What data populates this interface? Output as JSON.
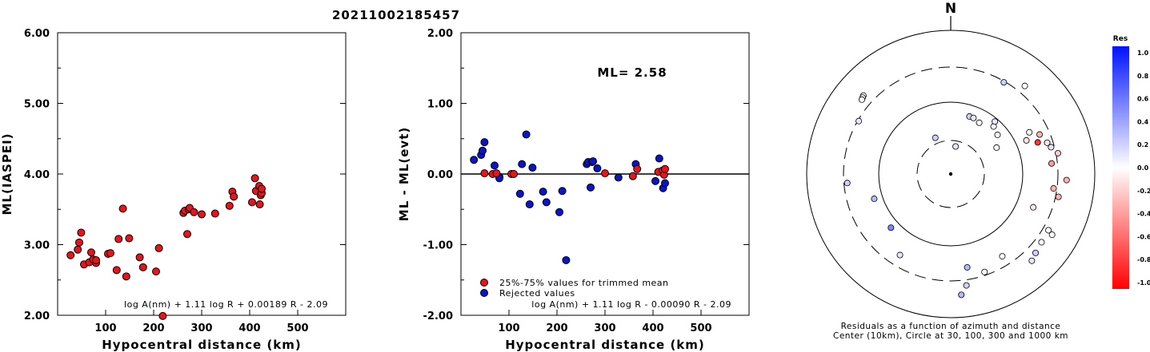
{
  "title": "20211002185457",
  "panel1": {
    "ylabel": "ML(IASPEI)",
    "xlabel": "Hypocentral distance (km)",
    "formula": "log A(nm) + 1.11 log R + 0.00189 R - 2.09",
    "yticks": [
      "2.00",
      "3.00",
      "4.00",
      "5.00",
      "6.00"
    ],
    "xticks": [
      "100",
      "200",
      "300",
      "400",
      "500"
    ]
  },
  "panel2": {
    "ylabel": "ML - ML(evt)",
    "xlabel": "Hypocentral distance (km)",
    "ml_text": "ML= 2.58",
    "legend_used": "25%-75% values for trimmed mean",
    "legend_rejected": "Rejected values",
    "formula": "log A(nm) + 1.11 log R - 0.00090 R - 2.09",
    "yticks": [
      "-2.00",
      "-1.00",
      "0.00",
      "1.00",
      "2.00"
    ],
    "xticks": [
      "100",
      "200",
      "300",
      "400",
      "500"
    ]
  },
  "panel3": {
    "north": "N",
    "caption1": "Residuals as a function of azimuth and distance",
    "caption2": "Center (10km), Circle at 30, 100, 300 and 1000 km",
    "colorbar_title": "Res",
    "colorbar_ticks": [
      "1.0",
      "0.8",
      "0.6",
      "0.4",
      "0.2",
      "0.0",
      "-0.2",
      "-0.4",
      "-0.6",
      "-0.8",
      "-1.0"
    ]
  },
  "colors": {
    "used": "#e8141b",
    "rejected": "#0a14c8"
  },
  "chart_data": [
    {
      "type": "scatter",
      "title": "20211002185457",
      "xlabel": "Hypocentral distance (km)",
      "ylabel": "ML(IASPEI)",
      "xlim": [
        0,
        600
      ],
      "ylim": [
        2.0,
        6.0
      ],
      "points": [
        [
          27,
          2.85
        ],
        [
          42,
          2.93
        ],
        [
          45,
          3.03
        ],
        [
          49,
          3.17
        ],
        [
          55,
          2.72
        ],
        [
          66,
          2.75
        ],
        [
          70,
          2.89
        ],
        [
          74,
          2.79
        ],
        [
          80,
          2.74
        ],
        [
          80,
          2.78
        ],
        [
          105,
          2.87
        ],
        [
          110,
          2.88
        ],
        [
          123,
          2.64
        ],
        [
          127,
          3.08
        ],
        [
          136,
          3.51
        ],
        [
          143,
          2.55
        ],
        [
          149,
          3.09
        ],
        [
          171,
          2.82
        ],
        [
          178,
          2.68
        ],
        [
          205,
          2.62
        ],
        [
          211,
          2.95
        ],
        [
          219,
          1.99
        ],
        [
          262,
          3.45
        ],
        [
          265,
          3.48
        ],
        [
          270,
          3.15
        ],
        [
          273,
          3.5
        ],
        [
          275,
          3.52
        ],
        [
          284,
          3.46
        ],
        [
          300,
          3.43
        ],
        [
          328,
          3.44
        ],
        [
          358,
          3.55
        ],
        [
          364,
          3.75
        ],
        [
          367,
          3.68
        ],
        [
          405,
          3.6
        ],
        [
          411,
          3.94
        ],
        [
          413,
          3.76
        ],
        [
          420,
          3.83
        ],
        [
          421,
          3.57
        ],
        [
          423,
          3.7
        ],
        [
          425,
          3.73
        ],
        [
          425,
          3.79
        ]
      ]
    },
    {
      "type": "scatter",
      "xlabel": "Hypocentral distance (km)",
      "ylabel": "ML - ML(evt)",
      "xlim": [
        0,
        600
      ],
      "ylim": [
        -2.0,
        2.0
      ],
      "reference_line": 0.0,
      "series": [
        {
          "name": "25%-75% values for trimmed mean",
          "points": [
            [
              49,
              0.01
            ],
            [
              66,
              0.0
            ],
            [
              74,
              0.01
            ],
            [
              105,
              0.0
            ],
            [
              110,
              0.0
            ],
            [
              300,
              0.01
            ],
            [
              358,
              -0.03
            ],
            [
              367,
              0.07
            ],
            [
              411,
              0.03
            ],
            [
              420,
              0.05
            ],
            [
              423,
              -0.01
            ],
            [
              425,
              0.07
            ]
          ]
        },
        {
          "name": "Rejected values",
          "points": [
            [
              27,
              0.2
            ],
            [
              42,
              0.27
            ],
            [
              45,
              0.33
            ],
            [
              49,
              0.45
            ],
            [
              70,
              0.12
            ],
            [
              80,
              -0.04
            ],
            [
              80,
              -0.06
            ],
            [
              123,
              -0.28
            ],
            [
              127,
              0.14
            ],
            [
              136,
              0.56
            ],
            [
              143,
              -0.43
            ],
            [
              149,
              0.09
            ],
            [
              171,
              -0.25
            ],
            [
              178,
              -0.4
            ],
            [
              205,
              -0.54
            ],
            [
              211,
              -0.24
            ],
            [
              219,
              -1.22
            ],
            [
              262,
              0.14
            ],
            [
              265,
              0.17
            ],
            [
              270,
              -0.19
            ],
            [
              273,
              0.17
            ],
            [
              275,
              0.18
            ],
            [
              284,
              0.08
            ],
            [
              328,
              -0.05
            ],
            [
              364,
              0.14
            ],
            [
              405,
              -0.1
            ],
            [
              413,
              0.22
            ],
            [
              421,
              -0.2
            ],
            [
              425,
              -0.13
            ]
          ]
        }
      ],
      "annotation": "ML= 2.58"
    },
    {
      "type": "scatter",
      "title": "Residuals as a function of azimuth and distance",
      "subtitle": "Center (10km), Circle at 30, 100, 300 and 1000 km",
      "coordinate_system": "polar (azimuth deg, log distance km)",
      "rings_km": [
        30,
        100,
        300,
        1000
      ],
      "colorbar": {
        "label": "Res",
        "range": [
          -1.0,
          1.0
        ]
      },
      "stations": [
        {
          "az": 312,
          "dist": 420,
          "res": 0.0
        },
        {
          "az": 311,
          "dist": 410,
          "res": 0.0
        },
        {
          "az": 310,
          "dist": 400,
          "res": 0.0
        },
        {
          "az": 300,
          "dist": 290,
          "res": 0.1
        },
        {
          "az": 265,
          "dist": 270,
          "res": 0.2
        },
        {
          "az": 252,
          "dist": 130,
          "res": 0.3
        },
        {
          "az": 228,
          "dist": 130,
          "res": 0.5
        },
        {
          "az": 337,
          "dist": 36,
          "res": 0.2
        },
        {
          "az": 212,
          "dist": 210,
          "res": 0.1
        },
        {
          "az": 30,
          "dist": 290,
          "res": 0.2
        },
        {
          "az": 40,
          "dist": 390,
          "res": 0.0
        },
        {
          "az": 18,
          "dist": 70,
          "res": 0.2
        },
        {
          "az": 22,
          "dist": 70,
          "res": 0.1
        },
        {
          "az": 29,
          "dist": 66,
          "res": 0.0
        },
        {
          "az": 42,
          "dist": 78,
          "res": 0.0
        },
        {
          "az": 50,
          "dist": 71,
          "res": 0.0
        },
        {
          "az": 62,
          "dist": 170,
          "res": 0.0
        },
        {
          "az": 66,
          "dist": 220,
          "res": -0.3
        },
        {
          "az": 70,
          "dist": 190,
          "res": -0.8
        },
        {
          "az": 72,
          "dist": 250,
          "res": -0.1
        },
        {
          "az": 75,
          "dist": 270,
          "res": 0.1
        },
        {
          "az": 79,
          "dist": 320,
          "res": -0.2
        },
        {
          "az": 84,
          "dist": 250,
          "res": -0.4
        },
        {
          "az": 93,
          "dist": 400,
          "res": -0.3
        },
        {
          "az": 98,
          "dist": 270,
          "res": -0.3
        },
        {
          "az": 102,
          "dist": 330,
          "res": -0.3
        },
        {
          "az": 112,
          "dist": 170,
          "res": -0.1
        },
        {
          "az": 120,
          "dist": 360,
          "res": 0.0
        },
        {
          "az": 121,
          "dist": 430,
          "res": 0.0
        },
        {
          "az": 127,
          "dist": 370,
          "res": 0.0
        },
        {
          "az": 133,
          "dist": 400,
          "res": 0.2
        },
        {
          "az": 137,
          "dist": 440,
          "res": 0.1
        },
        {
          "az": 148,
          "dist": 220,
          "res": 0.0
        },
        {
          "az": 161,
          "dist": 270,
          "res": 0.0
        },
        {
          "az": 170,
          "dist": 205,
          "res": 0.3
        },
        {
          "az": 172,
          "dist": 360,
          "res": 0.2
        },
        {
          "az": 175,
          "dist": 480,
          "res": 0.3
        },
        {
          "az": 66,
          "dist": 140,
          "res": -0.1
        },
        {
          "az": 40,
          "dist": 90,
          "res": 0.1
        },
        {
          "az": 60,
          "dist": 55,
          "res": 0.0
        },
        {
          "az": 10,
          "dist": 25,
          "res": 0.1
        }
      ]
    }
  ]
}
